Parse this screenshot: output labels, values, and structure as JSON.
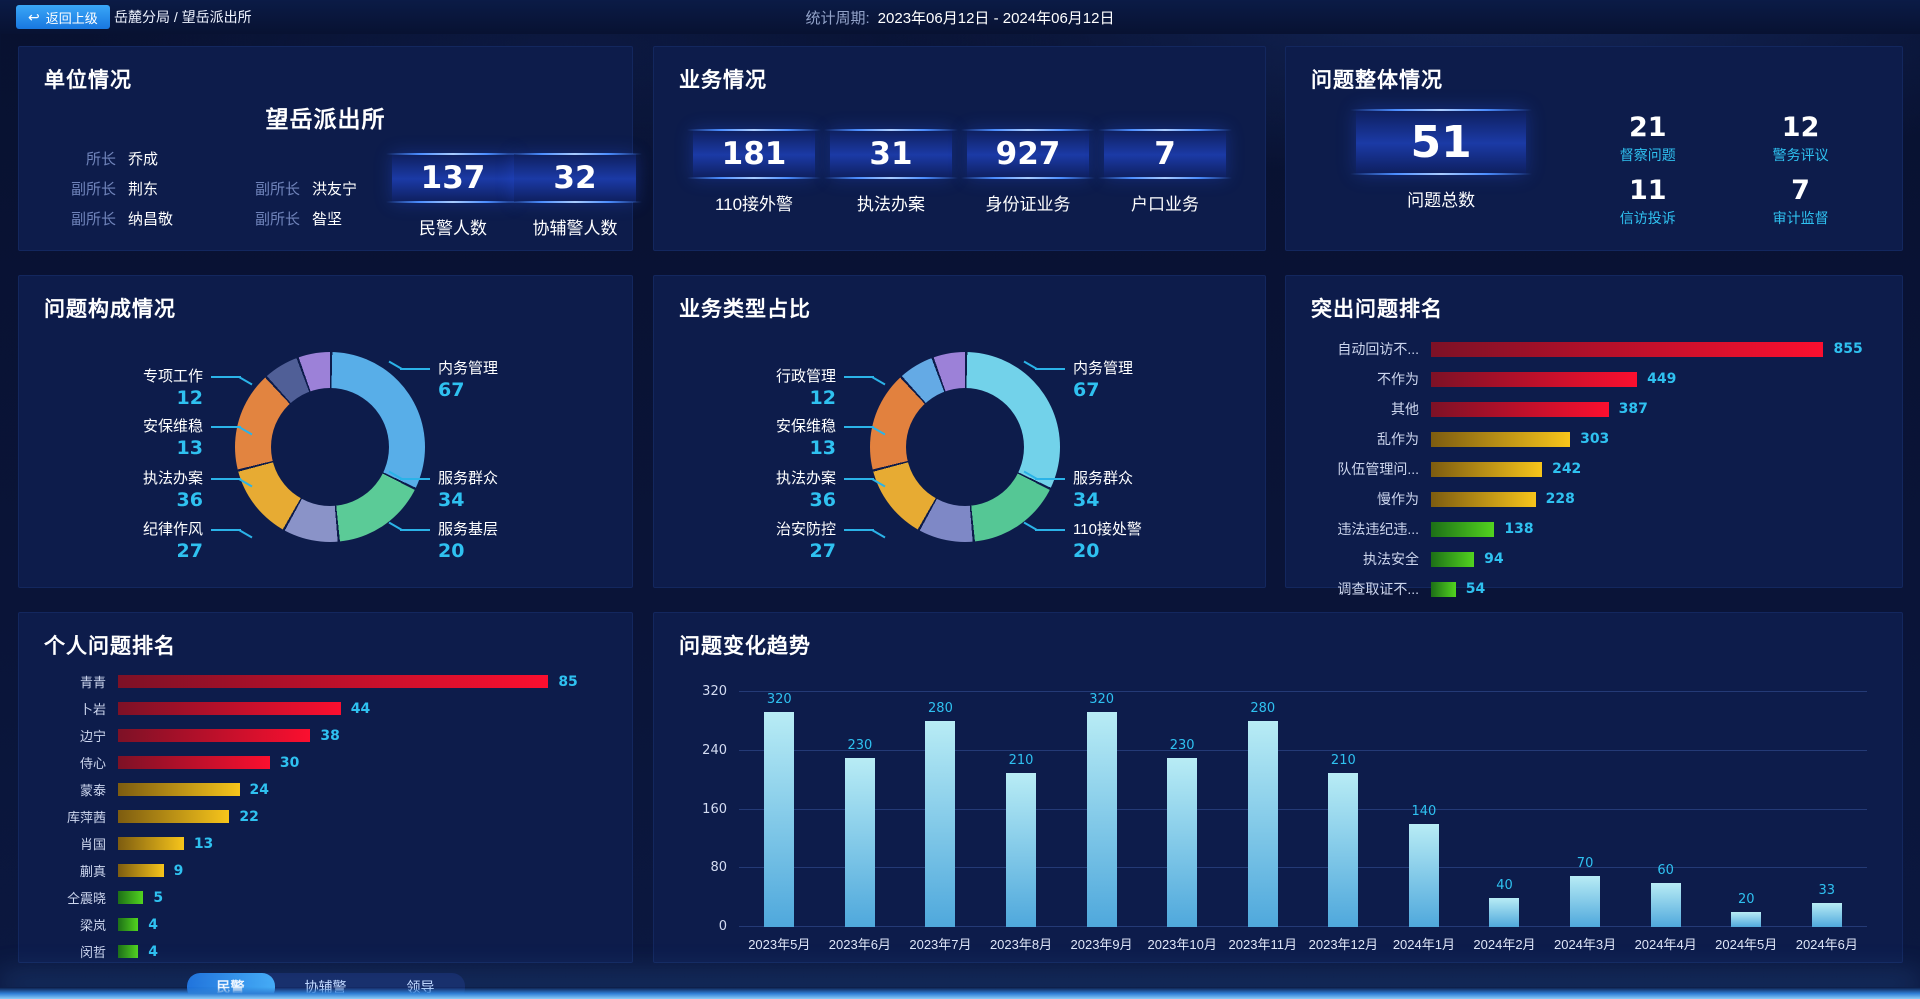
{
  "topbar": {
    "back_label": "返回上级",
    "breadcrumb": "岳麓分局 / 望岳派出所",
    "period_label": "统计周期:",
    "period_value": "2023年06月12日 - 2024年06月12日"
  },
  "theme": {
    "accent_cyan": "#2fc1f0",
    "panel_bg": "#0d1c4b",
    "chip_glow_blue": "#4b8dff",
    "tab_active_gradient": [
      "#1c6fd8",
      "#45aef5"
    ]
  },
  "unit_panel": {
    "title": "单位情况",
    "station_name": "望岳派出所",
    "leader_rows": [
      [
        {
          "role": "所长",
          "name": "乔成"
        }
      ],
      [
        {
          "role": "副所长",
          "name": "荆东"
        },
        {
          "role": "副所长",
          "name": "洪友宁"
        }
      ],
      [
        {
          "role": "副所长",
          "name": "纳昌敬"
        },
        {
          "role": "副所长",
          "name": "昝坚"
        }
      ]
    ],
    "stats": [
      {
        "value": "137",
        "label": "民警人数"
      },
      {
        "value": "32",
        "label": "协辅警人数"
      }
    ]
  },
  "business_panel": {
    "title": "业务情况",
    "stats": [
      {
        "value": "181",
        "label": "110接外警"
      },
      {
        "value": "31",
        "label": "执法办案"
      },
      {
        "value": "927",
        "label": "身份证业务"
      },
      {
        "value": "7",
        "label": "户口业务"
      }
    ]
  },
  "problem_overview_panel": {
    "title": "问题整体情况",
    "total": {
      "value": "51",
      "label": "问题总数"
    },
    "stats": [
      {
        "value": "21",
        "label": "督察问题"
      },
      {
        "value": "12",
        "label": "警务评议"
      },
      {
        "value": "11",
        "label": "信访投诉"
      },
      {
        "value": "7",
        "label": "审计监督"
      }
    ]
  },
  "chart_data": [
    {
      "id": "problem_composition",
      "type": "pie",
      "title": "问题构成情况",
      "legend_position": "callout-labels",
      "slices": [
        {
          "name": "内务管理",
          "value": 67,
          "color": "#58aee8"
        },
        {
          "name": "服务群众",
          "value": 34,
          "color": "#5bcb97"
        },
        {
          "name": "服务基层",
          "value": 20,
          "color": "#8a93c8"
        },
        {
          "name": "纪律作风",
          "value": 27,
          "color": "#e7ab33"
        },
        {
          "name": "执法办案",
          "value": 36,
          "color": "#e28440"
        },
        {
          "name": "安保维稳",
          "value": 13,
          "color": "#505f97"
        },
        {
          "name": "专项工作",
          "value": 12,
          "color": "#9c81d8"
        }
      ]
    },
    {
      "id": "business_type",
      "type": "pie",
      "title": "业务类型占比",
      "legend_position": "callout-labels",
      "slices": [
        {
          "name": "内务管理",
          "value": 67,
          "color": "#72d2ea"
        },
        {
          "name": "服务群众",
          "value": 34,
          "color": "#55c795"
        },
        {
          "name": "110接处警",
          "value": 20,
          "color": "#7e88c6"
        },
        {
          "name": "治安防控",
          "value": 27,
          "color": "#e7ab33"
        },
        {
          "name": "执法办案",
          "value": 36,
          "color": "#e2813e"
        },
        {
          "name": "安保维稳",
          "value": 13,
          "color": "#64aae5"
        },
        {
          "name": "行政管理",
          "value": 12,
          "color": "#9c81d8"
        }
      ]
    },
    {
      "id": "top_problems",
      "type": "bar",
      "orientation": "horizontal",
      "title": "突出问题排名",
      "categories": [
        "自动回访不...",
        "不作为",
        "其他",
        "乱作为",
        "队伍管理问...",
        "慢作为",
        "违法违纪违...",
        "执法安全",
        "调查取证不..."
      ],
      "values": [
        855,
        449,
        387,
        303,
        242,
        228,
        138,
        94,
        54
      ],
      "groups": [
        "red",
        "red",
        "red",
        "gold",
        "gold",
        "gold",
        "green",
        "green",
        "green"
      ],
      "palette": {
        "red": [
          "#7d1126",
          "#fb0f2f"
        ],
        "gold": [
          "#7d5c10",
          "#f7c51b"
        ],
        "green": [
          "#1d6f17",
          "#52d41f"
        ]
      },
      "xlim": [
        0,
        855
      ]
    },
    {
      "id": "personal_ranking",
      "type": "bar",
      "orientation": "horizontal",
      "title": "个人问题排名",
      "categories": [
        "青青",
        "卜岩",
        "边宁",
        "侍心",
        "蒙泰",
        "库萍茜",
        "肖国",
        "蒯真",
        "仝震晓",
        "梁岚",
        "闵哲"
      ],
      "values": [
        85,
        44,
        38,
        30,
        24,
        22,
        13,
        9,
        5,
        4,
        4
      ],
      "groups": [
        "red",
        "red",
        "red",
        "red",
        "gold",
        "gold",
        "gold",
        "gold",
        "green",
        "green",
        "green"
      ],
      "palette": {
        "red": [
          "#7d1126",
          "#fb0f2f"
        ],
        "gold": [
          "#7d5c10",
          "#f7c51b"
        ],
        "green": [
          "#1d6f17",
          "#52d41f"
        ]
      },
      "xlim": [
        0,
        85
      ],
      "tabs": [
        "民警",
        "协辅警",
        "领导"
      ],
      "active_tab": "民警"
    },
    {
      "id": "problem_trend",
      "type": "bar",
      "orientation": "vertical",
      "title": "问题变化趋势",
      "categories": [
        "2023年5月",
        "2023年6月",
        "2023年7月",
        "2023年8月",
        "2023年9月",
        "2023年10月",
        "2023年11月",
        "2023年12月",
        "2024年1月",
        "2024年2月",
        "2024年3月",
        "2024年4月",
        "2024年5月",
        "2024年6月"
      ],
      "values": [
        320,
        230,
        280,
        210,
        320,
        230,
        280,
        210,
        140,
        40,
        70,
        60,
        20,
        33
      ],
      "bar_color": [
        "#b8ecf5",
        "#4fa8dc"
      ],
      "value_label_color": "#2fc1f0",
      "ylim": [
        0,
        320
      ],
      "yticks": [
        0,
        80,
        160,
        240,
        320
      ],
      "grid": true
    }
  ]
}
